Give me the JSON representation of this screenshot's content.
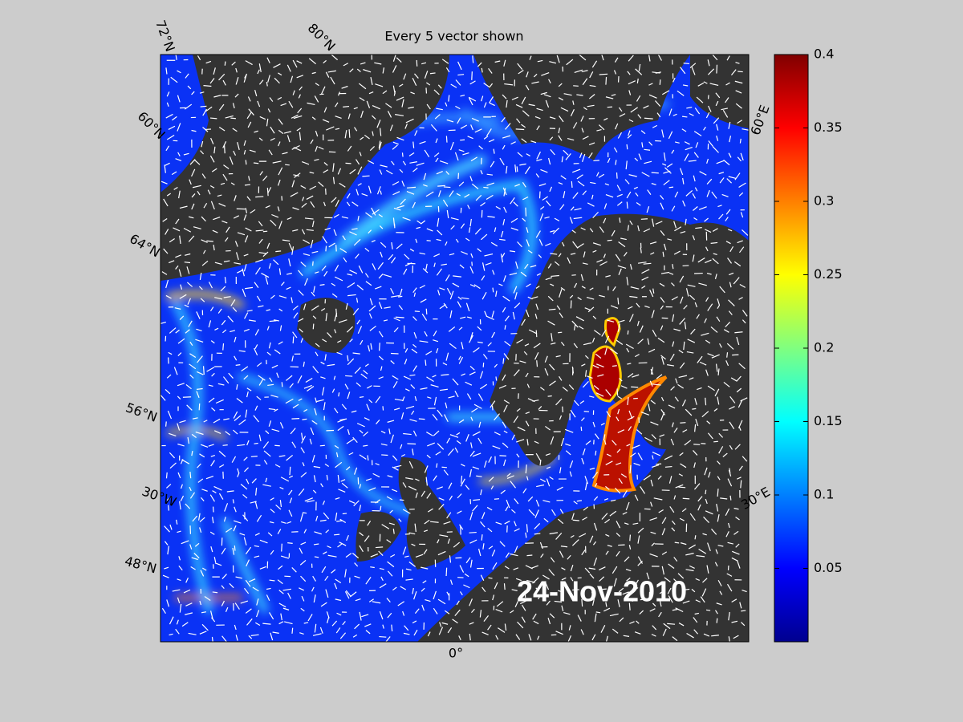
{
  "map": {
    "title": "Every 5 vector shown",
    "date": "24-Nov-2010",
    "graticule_labels": [
      "72°N",
      "80°N",
      "60°E",
      "60°N",
      "64°N",
      "56°N",
      "30°W",
      "48°N",
      "0°",
      "30°E"
    ]
  },
  "colorbar": {
    "ylim": [
      0,
      0.4
    ],
    "yticks": [
      0.05,
      0.1,
      0.15,
      0.2,
      0.25,
      0.3,
      0.35,
      0.4
    ]
  }
}
